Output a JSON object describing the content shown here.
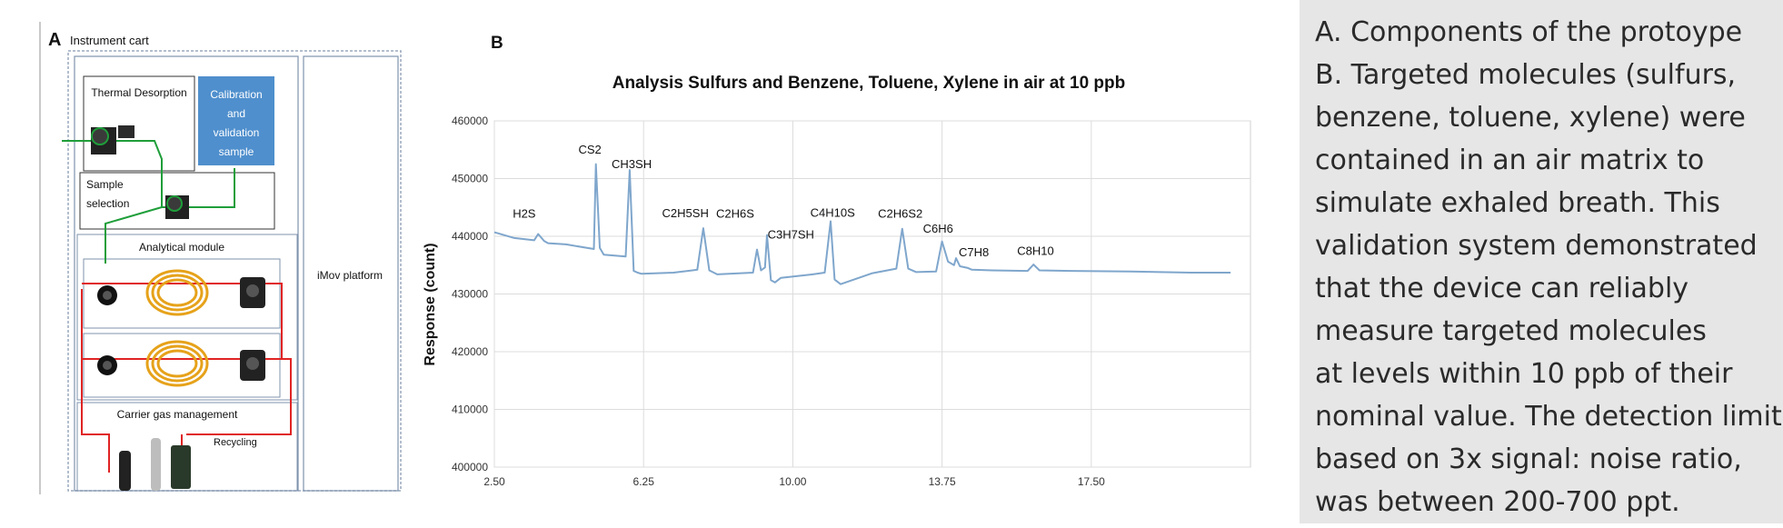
{
  "panel_a": {
    "letter": "A",
    "title": "Instrument cart",
    "thermal_desorption": "Thermal Desorption",
    "calibration_lines": [
      "Calibration",
      "and",
      "validation",
      "sample"
    ],
    "sample_selection_lines": [
      "Sample",
      "selection"
    ],
    "analytical_module": "Analytical module",
    "imov_platform": "iMov platform",
    "carrier_gas": "Carrier gas management",
    "recycling": "Recycling",
    "colors": {
      "line_green": "#1f9e3a",
      "line_red": "#e02424",
      "box_blue": "#4f8fcd",
      "ring_gold": "#e6a21a"
    }
  },
  "panel_b": {
    "letter": "B"
  },
  "chart_data": {
    "type": "line",
    "title": "Analysis Sulfurs and Benzene, Toluene, Xylene in air at 10 ppb",
    "xlabel": "",
    "ylabel": "Response (count)",
    "xlim": [
      2.5,
      21.5
    ],
    "ylim": [
      400000,
      460000
    ],
    "x_ticks": [
      2.5,
      6.25,
      10.0,
      13.75,
      17.5
    ],
    "x_tick_labels": [
      "2.50",
      "6.25",
      "10.00",
      "13.75",
      "17.50"
    ],
    "y_ticks": [
      400000,
      410000,
      420000,
      430000,
      440000,
      450000,
      460000
    ],
    "y_tick_labels": [
      "400000",
      "410000",
      "420000",
      "430000",
      "440000",
      "450000",
      "460000"
    ],
    "grid": true,
    "line_color": "#7fa6cc",
    "series": [
      {
        "x": [
          2.5,
          3.0,
          3.5,
          3.6,
          3.75,
          3.85,
          4.3,
          5.0,
          5.05,
          5.15,
          5.25,
          5.8,
          5.9,
          6.0,
          6.1,
          6.2,
          7.0,
          7.6,
          7.75,
          7.9,
          8.1,
          9.0,
          9.1,
          9.2,
          9.3,
          9.35,
          9.45,
          9.55,
          9.7,
          10.5,
          10.8,
          10.95,
          11.05,
          11.2,
          12.0,
          12.6,
          12.75,
          12.9,
          13.1,
          13.6,
          13.75,
          13.9,
          14.05,
          14.1,
          14.2,
          14.4,
          14.5,
          15.0,
          15.9,
          16.05,
          16.2,
          17.0,
          18.5,
          20.0,
          21.0
        ],
        "y": [
          440700,
          439700,
          439300,
          440400,
          439200,
          438800,
          438600,
          437800,
          452500,
          438000,
          436800,
          436500,
          451500,
          434000,
          433700,
          433500,
          433700,
          434200,
          441400,
          434100,
          433400,
          433700,
          437700,
          434100,
          434600,
          440200,
          432400,
          432000,
          432800,
          433400,
          433700,
          442600,
          432500,
          431700,
          433600,
          434400,
          441300,
          434400,
          433800,
          433900,
          439100,
          435600,
          435000,
          436200,
          434800,
          434500,
          434200,
          434100,
          434000,
          435100,
          434100,
          434000,
          433900,
          433700,
          433700
        ]
      }
    ],
    "annotations": [
      {
        "text": "H2S",
        "x": 3.25,
        "y": 443200
      },
      {
        "text": "CS2",
        "x": 4.9,
        "y": 454300
      },
      {
        "text": "CH3SH",
        "x": 5.95,
        "y": 451800
      },
      {
        "text": "C2H5SH",
        "x": 7.3,
        "y": 443300
      },
      {
        "text": "C2H6S",
        "x": 8.55,
        "y": 443200
      },
      {
        "text": "C3H7SH",
        "x": 9.95,
        "y": 439600
      },
      {
        "text": "C4H10S",
        "x": 11.0,
        "y": 443400
      },
      {
        "text": "C2H6S2",
        "x": 12.7,
        "y": 443200
      },
      {
        "text": "C6H6",
        "x": 13.65,
        "y": 440600
      },
      {
        "text": "C7H8",
        "x": 14.55,
        "y": 436500
      },
      {
        "text": "C8H10",
        "x": 16.1,
        "y": 436800
      }
    ]
  },
  "caption": {
    "lines": [
      "A. Components of the protoype",
      "B. Targeted molecules (sulfurs,",
      "benzene, toluene, xylene) were",
      "contained in an air matrix to",
      "simulate exhaled breath. This",
      "validation system demonstrated",
      "that the device can reliably",
      "measure targeted molecules",
      "at levels within 10 ppb of their",
      "nominal value. The detection limit,",
      "based on 3x signal: noise ratio,",
      "was between 200-700 ppt."
    ]
  }
}
